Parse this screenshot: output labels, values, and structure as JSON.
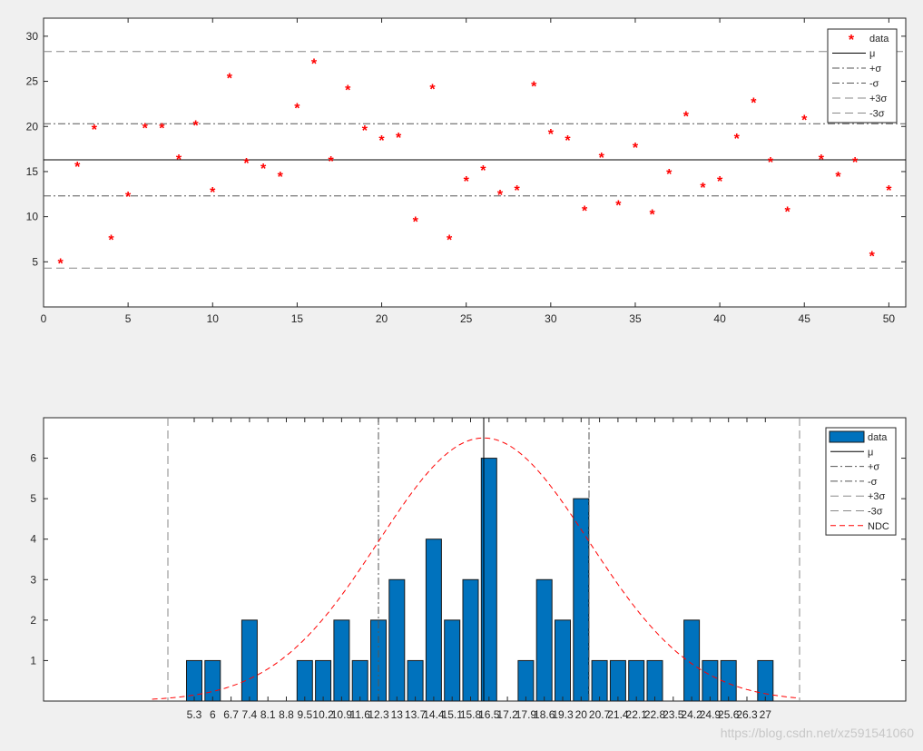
{
  "colors": {
    "background": "#f0f0f0",
    "axes": "#ffffff",
    "scatter": "#ff0000",
    "bars": "#0072bd",
    "ndc": "#ff0000",
    "mean_line": "#000000",
    "sigma_line": "#555555",
    "three_sigma_line": "#888888",
    "watermark": "#cccccc"
  },
  "watermark": "https://blog.csdn.net/xz591541060",
  "chart_data": [
    {
      "type": "scatter",
      "x": [
        1,
        2,
        3,
        4,
        5,
        6,
        7,
        8,
        9,
        10,
        11,
        12,
        13,
        14,
        15,
        16,
        17,
        18,
        19,
        20,
        21,
        22,
        23,
        24,
        25,
        26,
        27,
        28,
        29,
        30,
        31,
        32,
        33,
        34,
        35,
        36,
        37,
        38,
        39,
        40,
        41,
        42,
        43,
        44,
        45,
        46,
        47,
        48,
        49,
        50
      ],
      "y": [
        5.0,
        15.7,
        19.8,
        7.6,
        12.4,
        20.0,
        20.0,
        16.5,
        20.3,
        12.9,
        25.5,
        16.1,
        15.5,
        14.6,
        22.2,
        27.1,
        16.3,
        24.2,
        19.7,
        18.6,
        18.9,
        9.6,
        24.3,
        7.6,
        14.1,
        15.3,
        12.6,
        13.1,
        24.6,
        19.3,
        18.6,
        10.8,
        16.7,
        11.4,
        17.8,
        10.4,
        14.9,
        21.3,
        13.4,
        14.1,
        18.8,
        22.8,
        16.2,
        10.7,
        20.9,
        16.5,
        14.6,
        16.2,
        5.8,
        13.1
      ],
      "xlim": [
        0,
        51
      ],
      "ylim": [
        0,
        32
      ],
      "xticks": [
        0,
        5,
        10,
        15,
        20,
        25,
        30,
        35,
        40,
        45,
        50
      ],
      "yticks": [
        5,
        10,
        15,
        20,
        25,
        30
      ],
      "mean": 16.3,
      "plus_sigma": 20.3,
      "minus_sigma": 12.3,
      "plus_3sigma": 28.3,
      "minus_3sigma": 4.3,
      "legend": {
        "position": "top-right",
        "entries": [
          {
            "label": "data",
            "style": "marker"
          },
          {
            "label": "μ",
            "style": "solid"
          },
          {
            "label": "+σ",
            "style": "dashdot"
          },
          {
            "label": "-σ",
            "style": "dashdot"
          },
          {
            "label": "+3σ",
            "style": "dashed"
          },
          {
            "label": "-3σ",
            "style": "dashed"
          }
        ]
      }
    },
    {
      "type": "bar",
      "categories": [
        "5.3",
        "6",
        "6.7",
        "7.4",
        "8.1",
        "8.8",
        "9.5",
        "10.2",
        "10.9",
        "11.6",
        "12.3",
        "13",
        "13.7",
        "14.4",
        "15.1",
        "15.8",
        "16.5",
        "17.2",
        "17.9",
        "18.6",
        "19.3",
        "20",
        "20.7",
        "21.4",
        "22.1",
        "22.8",
        "23.5",
        "24.2",
        "24.9",
        "25.6",
        "26.3",
        "27"
      ],
      "tick_labels": [
        "5.3",
        "6",
        "6.7",
        "7.4",
        "8.1",
        "8.8",
        "9.5",
        "10.2",
        "10.9",
        "11.6",
        "12.3",
        "13",
        "13.7",
        "14.4",
        "15.1",
        "15.8",
        "16.5",
        "17.2",
        "17.9",
        "18.6",
        "19.3",
        "20",
        "20.7",
        "21.4",
        "22.1",
        "22.8",
        "23.5",
        "24.2",
        "24.9",
        "25.6",
        "26.3",
        "27"
      ],
      "values": [
        1,
        1,
        0,
        2,
        0,
        0,
        1,
        1,
        2,
        1,
        2,
        3,
        1,
        4,
        2,
        3,
        6,
        0,
        1,
        3,
        2,
        5,
        1,
        1,
        1,
        1,
        0,
        2,
        1,
        1,
        0,
        1
      ],
      "ylim": [
        0,
        7
      ],
      "yticks": [
        1,
        2,
        3,
        4,
        5,
        6
      ],
      "mean": 16.3,
      "plus_sigma": 20.3,
      "minus_sigma": 12.3,
      "plus_3sigma": 28.3,
      "minus_3sigma": 4.3,
      "ndc_peak": 6.5,
      "sigma": 4.0,
      "legend": {
        "position": "top-right",
        "entries": [
          {
            "label": "data",
            "style": "bar"
          },
          {
            "label": "μ",
            "style": "solid"
          },
          {
            "label": "+σ",
            "style": "dashdot"
          },
          {
            "label": "-σ",
            "style": "dashdot"
          },
          {
            "label": "+3σ",
            "style": "dashed"
          },
          {
            "label": "-3σ",
            "style": "dashed"
          },
          {
            "label": "NDC",
            "style": "dashed-red"
          }
        ]
      }
    }
  ]
}
